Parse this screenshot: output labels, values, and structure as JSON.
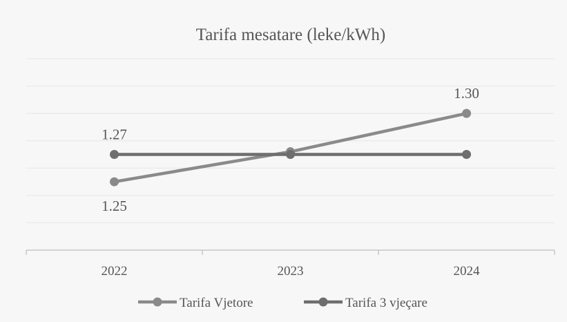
{
  "chart_data": {
    "type": "line",
    "title": "Tarifa mesatare (leke/kWh)",
    "categories": [
      "2022",
      "2023",
      "2024"
    ],
    "series": [
      {
        "name": "Tarifa Vjetore",
        "values": [
          1.25,
          1.272,
          1.3
        ],
        "color": "#8a8a8a",
        "labels": [
          "1.25",
          "",
          "1.30"
        ]
      },
      {
        "name": "Tarifa 3 vjeçare",
        "values": [
          1.27,
          1.27,
          1.27
        ],
        "color": "#6e6e6e",
        "labels": [
          "1.27",
          "",
          ""
        ]
      }
    ],
    "ylim": [
      1.2,
      1.34
    ],
    "grid": true,
    "legend_position": "bottom"
  }
}
